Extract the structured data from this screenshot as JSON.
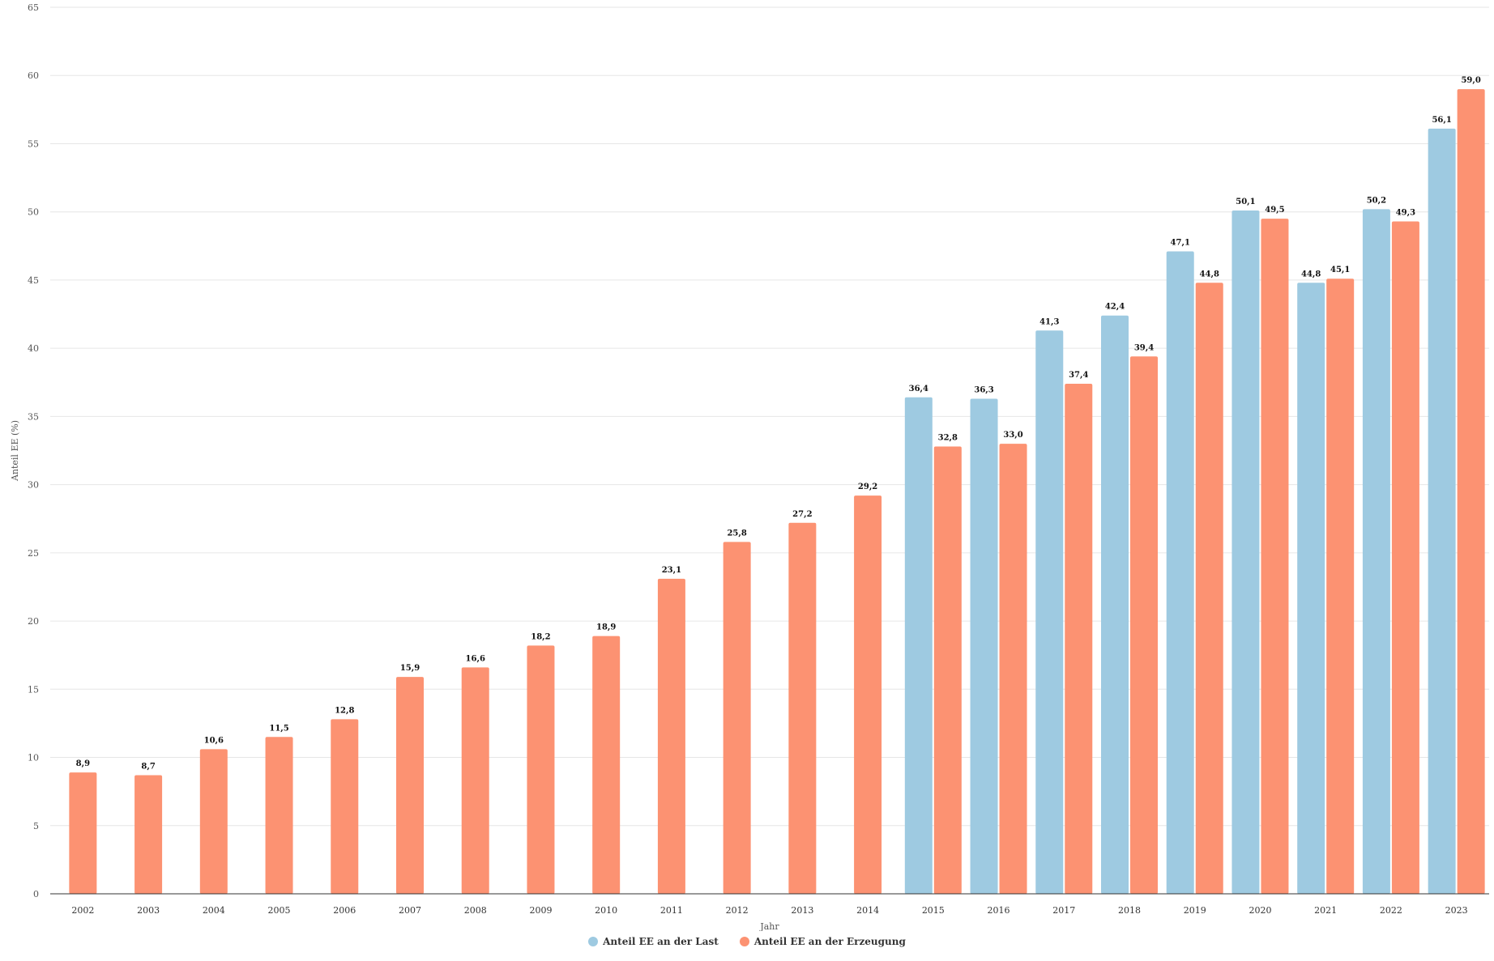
{
  "chart_data": {
    "type": "bar",
    "title": "",
    "xlabel": "Jahr",
    "ylabel": "Anteil EE (%)",
    "ylim": [
      0,
      65
    ],
    "yticks": [
      0,
      5,
      10,
      15,
      20,
      25,
      30,
      35,
      40,
      45,
      50,
      55,
      60,
      65
    ],
    "grid": true,
    "legend_position": "bottom-center",
    "categories": [
      "2002",
      "2003",
      "2004",
      "2005",
      "2006",
      "2007",
      "2008",
      "2009",
      "2010",
      "2011",
      "2012",
      "2013",
      "2014",
      "2015",
      "2016",
      "2017",
      "2018",
      "2019",
      "2020",
      "2021",
      "2022",
      "2023"
    ],
    "series": [
      {
        "name": "Anteil EE an der Last",
        "color": "#9ecae1",
        "values": [
          null,
          null,
          null,
          null,
          null,
          null,
          null,
          null,
          null,
          null,
          null,
          null,
          null,
          36.4,
          36.3,
          41.3,
          42.4,
          47.1,
          50.1,
          44.8,
          50.2,
          56.1
        ],
        "labels": [
          "",
          "",
          "",
          "",
          "",
          "",
          "",
          "",
          "",
          "",
          "",
          "",
          "",
          "36,4",
          "36,3",
          "41,3",
          "42,4",
          "47,1",
          "50,1",
          "44,8",
          "50,2",
          "56,1"
        ]
      },
      {
        "name": "Anteil EE an der Erzeugung",
        "color": "#fc9272",
        "values": [
          8.9,
          8.7,
          10.6,
          11.5,
          12.8,
          15.9,
          16.6,
          18.2,
          18.9,
          23.1,
          25.8,
          27.2,
          29.2,
          32.8,
          33.0,
          37.4,
          39.4,
          44.8,
          49.5,
          45.1,
          49.3,
          59.0
        ],
        "labels": [
          "8,9",
          "8,7",
          "10,6",
          "11,5",
          "12,8",
          "15,9",
          "16,6",
          "18,2",
          "18,9",
          "23,1",
          "25,8",
          "27,2",
          "29,2",
          "32,8",
          "33,0",
          "37,4",
          "39,4",
          "44,8",
          "49,5",
          "45,1",
          "49,3",
          "59,0"
        ]
      }
    ]
  }
}
